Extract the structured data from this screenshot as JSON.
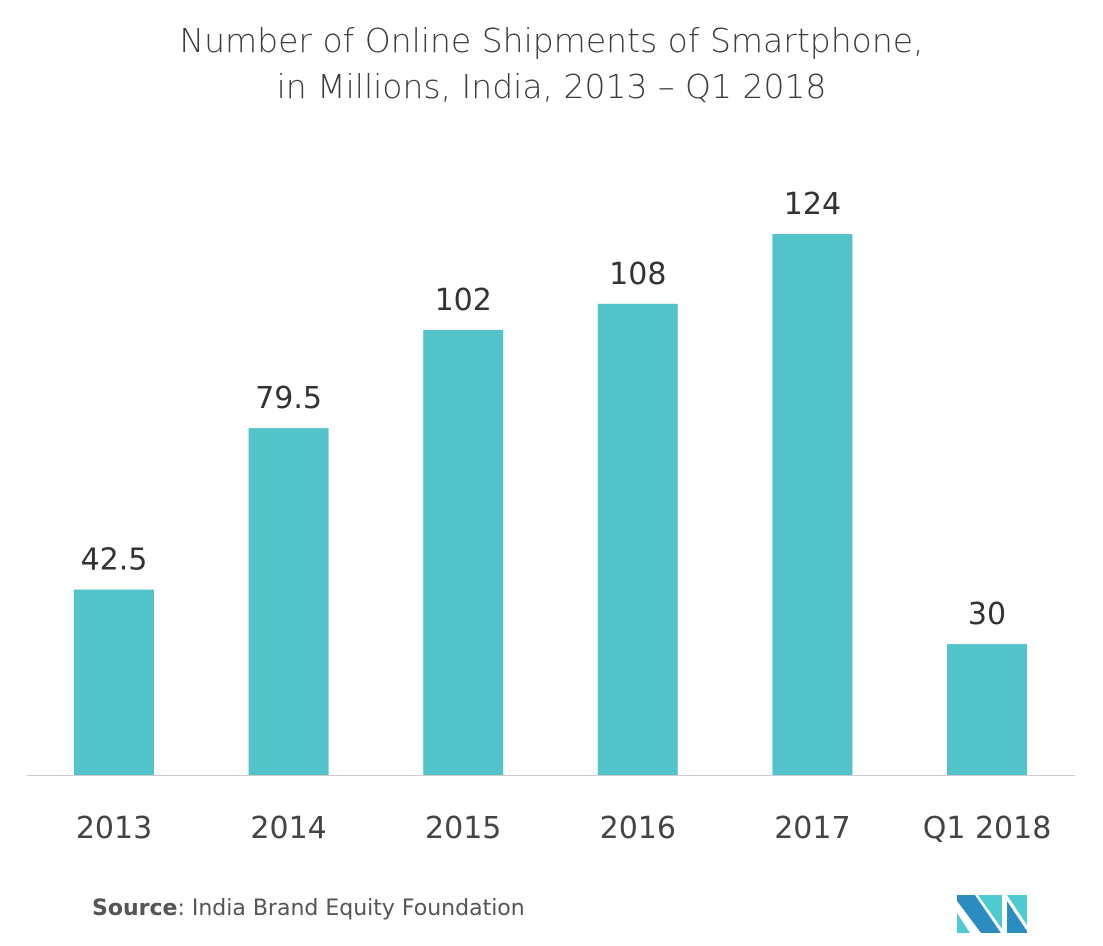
{
  "chart_data": {
    "type": "bar",
    "title_line1": "Number of Online Shipments of Smartphone,",
    "title_line2": "in Millions, India, 2013 – Q1 2018",
    "categories": [
      "2013",
      "2014",
      "2015",
      "2016",
      "2017",
      "Q1 2018"
    ],
    "values": [
      42.5,
      79.5,
      102,
      108,
      124,
      30
    ],
    "labels": [
      "42.5",
      "79.5",
      "102",
      "108",
      "124",
      "30"
    ],
    "xlabel": "",
    "ylabel": "",
    "ylim": [
      0,
      125
    ],
    "grid": false,
    "bar_color": "#52c4c9"
  },
  "source": {
    "label": "Source",
    "text": ": India Brand Equity Foundation"
  },
  "logo": {
    "dark": "#2b8cc0",
    "light": "#4ecbd0"
  }
}
